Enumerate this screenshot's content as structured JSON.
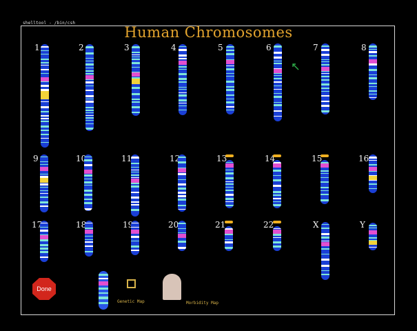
{
  "window": {
    "title": "shelltool - /bin/csh"
  },
  "header": {
    "title": "Human Chromosomes"
  },
  "colors": {
    "dark_band": "#1a3fd6",
    "light_band": "#7fe6d8",
    "centromere": "#e24fd0",
    "heterochromatin": "#f2d23a",
    "satellite": "#f0b020",
    "frame": "#d9d9d9"
  },
  "chromosomes": [
    {
      "label": "1"
    },
    {
      "label": "2"
    },
    {
      "label": "3"
    },
    {
      "label": "4"
    },
    {
      "label": "5"
    },
    {
      "label": "6"
    },
    {
      "label": "7"
    },
    {
      "label": "8"
    },
    {
      "label": "9"
    },
    {
      "label": "10"
    },
    {
      "label": "11"
    },
    {
      "label": "12"
    },
    {
      "label": "13"
    },
    {
      "label": "14"
    },
    {
      "label": "15"
    },
    {
      "label": "16"
    },
    {
      "label": "17"
    },
    {
      "label": "18"
    },
    {
      "label": "19"
    },
    {
      "label": "20"
    },
    {
      "label": "21"
    },
    {
      "label": "22"
    },
    {
      "label": "X"
    },
    {
      "label": "Y"
    }
  ],
  "controls": {
    "done_label": "Done",
    "genetic_map_label": "Genetic Map",
    "morbidity_map_label": "Morbidity Map"
  }
}
